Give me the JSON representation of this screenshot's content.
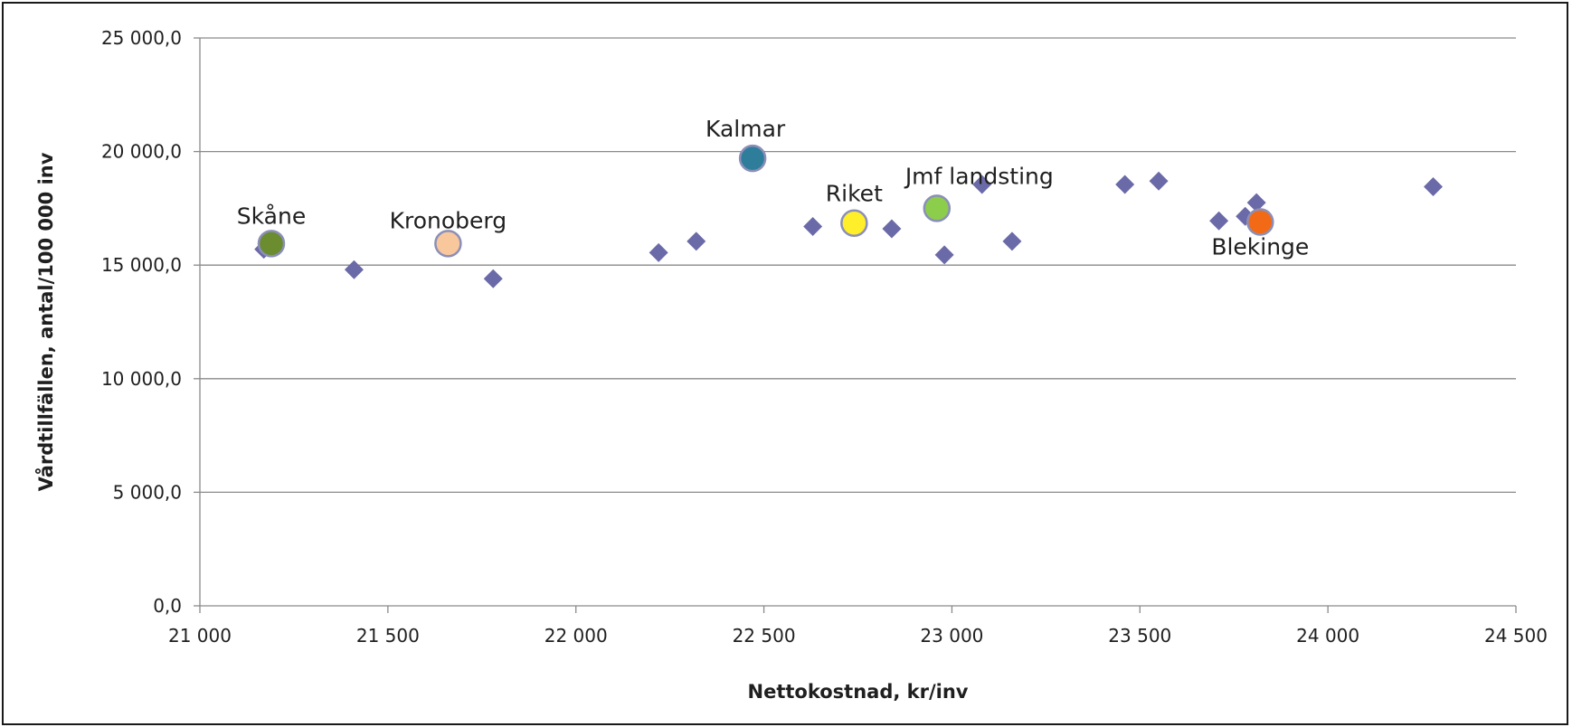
{
  "chart_data": {
    "type": "scatter",
    "xlabel": "Nettokostnad, kr/inv",
    "ylabel": "Vårdtillfällen, antal/100 000 inv",
    "xlim": [
      21000,
      24500
    ],
    "ylim": [
      0,
      25000
    ],
    "x_ticks": [
      21000,
      21500,
      22000,
      22500,
      23000,
      23500,
      24000,
      24500
    ],
    "x_tick_labels": [
      "21 000",
      "21 500",
      "22 000",
      "22 500",
      "23 000",
      "23 500",
      "24 000",
      "24 500"
    ],
    "y_ticks": [
      0,
      5000,
      10000,
      15000,
      20000,
      25000
    ],
    "y_tick_labels": [
      "0,0",
      "5 000,0",
      "10 000,0",
      "15 000,0",
      "20 000,0",
      "25 000,0"
    ],
    "grid": "horizontal",
    "series": [
      {
        "marker": "diamond",
        "color": "#6b6aa8",
        "points": [
          {
            "x": 21170,
            "y": 15700
          },
          {
            "x": 21410,
            "y": 14800
          },
          {
            "x": 21780,
            "y": 14400
          },
          {
            "x": 22220,
            "y": 15550
          },
          {
            "x": 22320,
            "y": 16050
          },
          {
            "x": 22630,
            "y": 16700
          },
          {
            "x": 22840,
            "y": 16600
          },
          {
            "x": 22980,
            "y": 15450
          },
          {
            "x": 23080,
            "y": 18550
          },
          {
            "x": 23160,
            "y": 16050
          },
          {
            "x": 23460,
            "y": 18550
          },
          {
            "x": 23550,
            "y": 18700
          },
          {
            "x": 23710,
            "y": 16950
          },
          {
            "x": 23780,
            "y": 17150
          },
          {
            "x": 23810,
            "y": 17750
          },
          {
            "x": 24280,
            "y": 18450
          }
        ]
      },
      {
        "marker": "circle",
        "points": [
          {
            "label": "Skåne",
            "x": 21190,
            "y": 15950,
            "color": "#6b8c2f"
          },
          {
            "label": "Kronoberg",
            "x": 21660,
            "y": 15950,
            "color": "#f9c79c"
          },
          {
            "label": "Kalmar",
            "x": 22470,
            "y": 19700,
            "color": "#2e7d9b"
          },
          {
            "label": "Riket",
            "x": 22740,
            "y": 16850,
            "color": "#ffee2a"
          },
          {
            "label": "Jmf landsting",
            "x": 22960,
            "y": 17500,
            "color": "#8ccd4b"
          },
          {
            "label": "Blekinge",
            "x": 23820,
            "y": 16900,
            "color": "#f26a16"
          }
        ]
      }
    ]
  }
}
